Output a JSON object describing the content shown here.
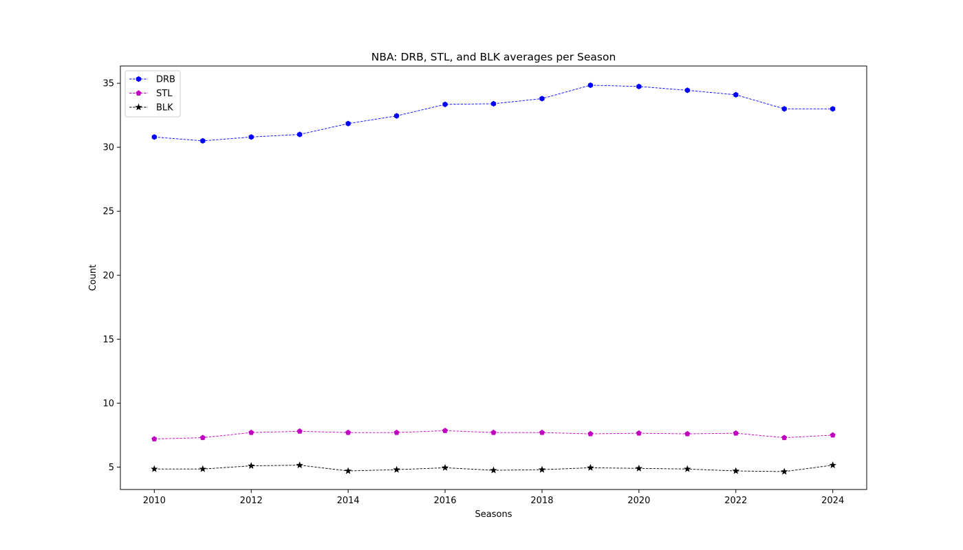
{
  "chart_data": {
    "type": "line",
    "title": "NBA: DRB, STL, and BLK averages per Season",
    "xlabel": "Seasons",
    "ylabel": "Count",
    "x": [
      2010,
      2011,
      2012,
      2013,
      2014,
      2015,
      2016,
      2017,
      2018,
      2019,
      2020,
      2021,
      2022,
      2023,
      2024
    ],
    "xlim": [
      2009.3,
      2024.7
    ],
    "ylim": [
      3.25,
      36.35
    ],
    "xticks": [
      2010,
      2012,
      2014,
      2016,
      2018,
      2020,
      2022,
      2024
    ],
    "yticks": [
      5,
      10,
      15,
      20,
      25,
      30,
      35
    ],
    "grid": false,
    "legend_position": "top-left",
    "series": [
      {
        "name": "DRB",
        "color": "#0000ff",
        "marker": "hexagon",
        "linestyle": "dashed",
        "values": [
          30.8,
          30.5,
          30.8,
          31.0,
          31.85,
          32.45,
          33.35,
          33.4,
          33.8,
          34.85,
          34.75,
          34.45,
          34.1,
          33.0,
          33.0
        ]
      },
      {
        "name": "STL",
        "color": "#bf00bf",
        "marker": "pentagon",
        "linestyle": "dashed",
        "values": [
          7.2,
          7.3,
          7.7,
          7.8,
          7.7,
          7.7,
          7.85,
          7.7,
          7.7,
          7.6,
          7.65,
          7.6,
          7.65,
          7.3,
          7.5
        ]
      },
      {
        "name": "BLK",
        "color": "#000000",
        "marker": "star",
        "linestyle": "dashed",
        "values": [
          4.85,
          4.85,
          5.1,
          5.15,
          4.7,
          4.8,
          4.95,
          4.75,
          4.8,
          4.95,
          4.9,
          4.85,
          4.7,
          4.65,
          5.15
        ]
      }
    ]
  }
}
